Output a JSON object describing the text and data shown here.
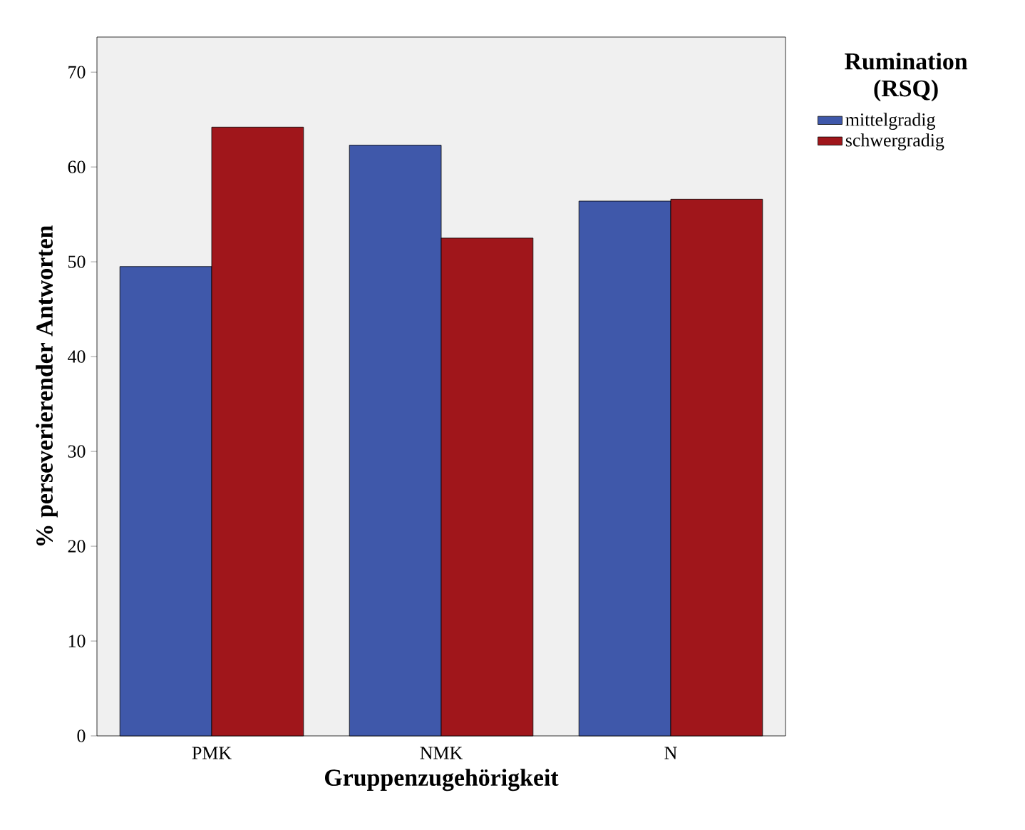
{
  "chart_data": {
    "type": "bar",
    "xlabel": "Gruppenzugehörigkeit",
    "ylabel": "% perseverierender Antworten",
    "legend_title": "Rumination (RSQ)",
    "categories": [
      "PMK",
      "NMK",
      "N"
    ],
    "series": [
      {
        "name": "mittelgradig",
        "color": "#3f58aa",
        "values": [
          49.5,
          62.3,
          56.4
        ]
      },
      {
        "name": "schwergradig",
        "color": "#a0161b",
        "values": [
          64.2,
          52.5,
          56.6
        ]
      }
    ],
    "ylim": [
      0,
      73.7
    ],
    "yticks": [
      0,
      10,
      20,
      30,
      40,
      50,
      60,
      70
    ],
    "grid": false,
    "legend": "top right"
  }
}
